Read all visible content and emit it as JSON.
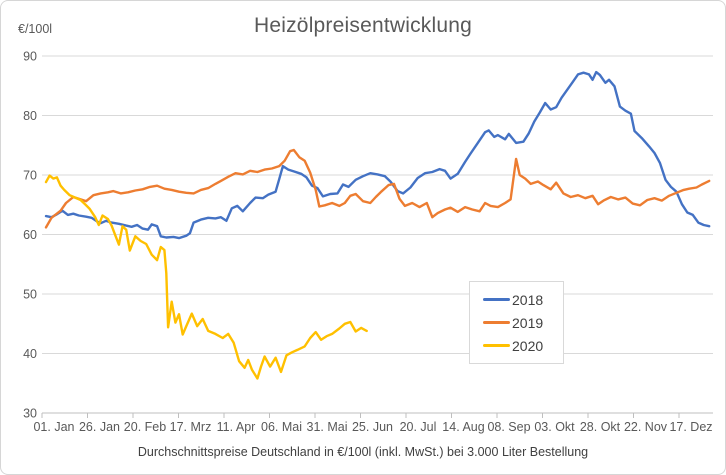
{
  "chart": {
    "title": "Heizölpreisentwicklung",
    "unit_label": "€/100l",
    "subtitle": "Durchschnittspreise Deutschland in €/100l (inkl. MwSt.) bei 3.000 Liter Bestellung"
  },
  "chart_data": {
    "type": "line",
    "title": "Heizölpreisentwicklung",
    "subtitle": "Durchschnittspreise Deutschland in €/100l (inkl. MwSt.) bei 3.000 Liter Bestellung",
    "ylabel": "€/100l",
    "ylim": [
      30,
      90
    ],
    "yticks": [
      90,
      80,
      70,
      60,
      50,
      40,
      30
    ],
    "grid": true,
    "legend_position": "center-right box",
    "x_unit": "day of year",
    "xticks": {
      "days": [
        0,
        25,
        50,
        75,
        100,
        125,
        150,
        175,
        200,
        225,
        250,
        275,
        300,
        325,
        350
      ],
      "labels": [
        "01. Jan",
        "26. Jan",
        "20. Feb",
        "17. Mrz",
        "11. Apr",
        "06. Mai",
        "31. Mai",
        "25. Jun",
        "20. Jul",
        "14. Aug",
        "08. Sep",
        "03. Okt",
        "28. Okt",
        "22. Nov",
        "17. Dez"
      ]
    },
    "series": [
      {
        "name": "2018",
        "color": "#4472C4",
        "points": [
          [
            0,
            63.1
          ],
          [
            3,
            62.9
          ],
          [
            6,
            63.4
          ],
          [
            9,
            64.0
          ],
          [
            12,
            63.3
          ],
          [
            15,
            63.5
          ],
          [
            18,
            63.2
          ],
          [
            22,
            63.0
          ],
          [
            25,
            62.8
          ],
          [
            28,
            62.2
          ],
          [
            30,
            61.9
          ],
          [
            33,
            62.3
          ],
          [
            36,
            62.0
          ],
          [
            40,
            61.8
          ],
          [
            44,
            61.5
          ],
          [
            47,
            61.3
          ],
          [
            50,
            61.6
          ],
          [
            53,
            61.0
          ],
          [
            56,
            60.8
          ],
          [
            58,
            61.7
          ],
          [
            61,
            61.4
          ],
          [
            63,
            59.7
          ],
          [
            66,
            59.5
          ],
          [
            70,
            59.6
          ],
          [
            73,
            59.4
          ],
          [
            77,
            59.8
          ],
          [
            79,
            60.2
          ],
          [
            81,
            62.0
          ],
          [
            85,
            62.5
          ],
          [
            89,
            62.8
          ],
          [
            93,
            62.7
          ],
          [
            96,
            62.9
          ],
          [
            99,
            62.3
          ],
          [
            102,
            64.4
          ],
          [
            105,
            64.8
          ],
          [
            108,
            63.9
          ],
          [
            112,
            65.3
          ],
          [
            115,
            66.2
          ],
          [
            119,
            66.1
          ],
          [
            122,
            66.7
          ],
          [
            126,
            67.2
          ],
          [
            128,
            69.3
          ],
          [
            130,
            71.5
          ],
          [
            133,
            70.9
          ],
          [
            136,
            70.6
          ],
          [
            140,
            70.2
          ],
          [
            143,
            69.6
          ],
          [
            146,
            68.2
          ],
          [
            149,
            67.8
          ],
          [
            152,
            66.4
          ],
          [
            156,
            66.8
          ],
          [
            160,
            66.9
          ],
          [
            163,
            68.4
          ],
          [
            166,
            68.0
          ],
          [
            170,
            69.2
          ],
          [
            174,
            69.8
          ],
          [
            178,
            70.3
          ],
          [
            182,
            70.1
          ],
          [
            186,
            69.8
          ],
          [
            189,
            68.9
          ],
          [
            193,
            67.3
          ],
          [
            196,
            66.9
          ],
          [
            200,
            67.9
          ],
          [
            204,
            69.5
          ],
          [
            208,
            70.3
          ],
          [
            212,
            70.5
          ],
          [
            216,
            71.0
          ],
          [
            219,
            70.7
          ],
          [
            222,
            69.4
          ],
          [
            226,
            70.2
          ],
          [
            230,
            72.2
          ],
          [
            233,
            73.6
          ],
          [
            237,
            75.4
          ],
          [
            241,
            77.2
          ],
          [
            243,
            77.5
          ],
          [
            246,
            76.4
          ],
          [
            248,
            76.7
          ],
          [
            252,
            76.0
          ],
          [
            254,
            76.9
          ],
          [
            258,
            75.4
          ],
          [
            262,
            75.6
          ],
          [
            265,
            77.0
          ],
          [
            268,
            79.0
          ],
          [
            271,
            80.5
          ],
          [
            274,
            82.1
          ],
          [
            277,
            81.0
          ],
          [
            280,
            81.4
          ],
          [
            283,
            83.0
          ],
          [
            286,
            84.3
          ],
          [
            289,
            85.6
          ],
          [
            292,
            86.9
          ],
          [
            295,
            87.2
          ],
          [
            298,
            86.9
          ],
          [
            300,
            86.0
          ],
          [
            302,
            87.3
          ],
          [
            304,
            86.8
          ],
          [
            307,
            85.5
          ],
          [
            309,
            86.0
          ],
          [
            312,
            84.9
          ],
          [
            315,
            81.5
          ],
          [
            318,
            80.8
          ],
          [
            321,
            80.3
          ],
          [
            323,
            77.4
          ],
          [
            327,
            76.2
          ],
          [
            331,
            74.8
          ],
          [
            334,
            73.7
          ],
          [
            337,
            72.0
          ],
          [
            340,
            69.2
          ],
          [
            343,
            68.0
          ],
          [
            346,
            67.2
          ],
          [
            349,
            65.1
          ],
          [
            352,
            63.7
          ],
          [
            355,
            63.3
          ],
          [
            358,
            62.0
          ],
          [
            361,
            61.6
          ],
          [
            364,
            61.4
          ]
        ]
      },
      {
        "name": "2019",
        "color": "#ED7D31",
        "points": [
          [
            0,
            61.2
          ],
          [
            3,
            62.8
          ],
          [
            8,
            64.0
          ],
          [
            11,
            65.3
          ],
          [
            15,
            66.3
          ],
          [
            18,
            66.0
          ],
          [
            22,
            65.6
          ],
          [
            26,
            66.6
          ],
          [
            30,
            66.9
          ],
          [
            34,
            67.1
          ],
          [
            37,
            67.3
          ],
          [
            41,
            66.9
          ],
          [
            45,
            67.1
          ],
          [
            49,
            67.4
          ],
          [
            53,
            67.6
          ],
          [
            57,
            68.0
          ],
          [
            61,
            68.2
          ],
          [
            65,
            67.7
          ],
          [
            69,
            67.5
          ],
          [
            73,
            67.2
          ],
          [
            77,
            67.0
          ],
          [
            81,
            66.9
          ],
          [
            85,
            67.5
          ],
          [
            89,
            67.8
          ],
          [
            93,
            68.5
          ],
          [
            96,
            69.0
          ],
          [
            100,
            69.7
          ],
          [
            104,
            70.3
          ],
          [
            108,
            70.1
          ],
          [
            112,
            70.7
          ],
          [
            116,
            70.5
          ],
          [
            120,
            70.9
          ],
          [
            124,
            71.1
          ],
          [
            128,
            71.5
          ],
          [
            131,
            72.4
          ],
          [
            134,
            74.0
          ],
          [
            136,
            74.2
          ],
          [
            139,
            73.0
          ],
          [
            142,
            72.4
          ],
          [
            145,
            70.4
          ],
          [
            148,
            67.5
          ],
          [
            150,
            64.7
          ],
          [
            153,
            64.9
          ],
          [
            157,
            65.3
          ],
          [
            161,
            64.8
          ],
          [
            164,
            65.3
          ],
          [
            167,
            66.5
          ],
          [
            170,
            66.8
          ],
          [
            174,
            65.6
          ],
          [
            178,
            65.3
          ],
          [
            181,
            66.3
          ],
          [
            184,
            67.2
          ],
          [
            188,
            68.3
          ],
          [
            191,
            68.5
          ],
          [
            194,
            66.0
          ],
          [
            197,
            64.8
          ],
          [
            201,
            65.3
          ],
          [
            205,
            64.6
          ],
          [
            209,
            65.3
          ],
          [
            212,
            62.9
          ],
          [
            215,
            63.6
          ],
          [
            219,
            64.2
          ],
          [
            222,
            64.5
          ],
          [
            226,
            63.8
          ],
          [
            230,
            64.6
          ],
          [
            234,
            64.2
          ],
          [
            238,
            63.9
          ],
          [
            241,
            65.3
          ],
          [
            244,
            64.8
          ],
          [
            248,
            64.6
          ],
          [
            252,
            65.3
          ],
          [
            255,
            65.9
          ],
          [
            258,
            72.7
          ],
          [
            260,
            70.0
          ],
          [
            263,
            69.4
          ],
          [
            266,
            68.5
          ],
          [
            270,
            68.9
          ],
          [
            273,
            68.3
          ],
          [
            277,
            67.6
          ],
          [
            280,
            68.7
          ],
          [
            284,
            66.9
          ],
          [
            288,
            66.3
          ],
          [
            292,
            66.6
          ],
          [
            296,
            66.1
          ],
          [
            300,
            66.5
          ],
          [
            303,
            65.1
          ],
          [
            306,
            65.7
          ],
          [
            310,
            66.3
          ],
          [
            314,
            65.9
          ],
          [
            318,
            66.2
          ],
          [
            322,
            65.2
          ],
          [
            326,
            64.9
          ],
          [
            330,
            65.8
          ],
          [
            334,
            66.1
          ],
          [
            338,
            65.7
          ],
          [
            342,
            66.5
          ],
          [
            346,
            67.0
          ],
          [
            350,
            67.5
          ],
          [
            353,
            67.7
          ],
          [
            357,
            67.9
          ],
          [
            360,
            68.4
          ],
          [
            362,
            68.7
          ],
          [
            364,
            69.0
          ]
        ]
      },
      {
        "name": "2020",
        "color": "#FFC000",
        "points": [
          [
            0,
            68.8
          ],
          [
            2,
            69.9
          ],
          [
            4,
            69.4
          ],
          [
            6,
            69.6
          ],
          [
            8,
            68.2
          ],
          [
            10,
            67.5
          ],
          [
            13,
            66.6
          ],
          [
            16,
            66.2
          ],
          [
            19,
            65.8
          ],
          [
            22,
            64.9
          ],
          [
            24,
            64.3
          ],
          [
            27,
            62.9
          ],
          [
            29,
            61.6
          ],
          [
            31,
            63.2
          ],
          [
            34,
            62.6
          ],
          [
            36,
            61.5
          ],
          [
            38,
            59.9
          ],
          [
            40,
            58.3
          ],
          [
            42,
            61.4
          ],
          [
            44,
            60.8
          ],
          [
            46,
            57.3
          ],
          [
            49,
            59.7
          ],
          [
            52,
            58.9
          ],
          [
            55,
            58.4
          ],
          [
            58,
            56.6
          ],
          [
            61,
            55.7
          ],
          [
            63,
            57.9
          ],
          [
            65,
            57.4
          ],
          [
            66,
            53.5
          ],
          [
            67,
            44.4
          ],
          [
            69,
            48.7
          ],
          [
            71,
            45.2
          ],
          [
            73,
            46.6
          ],
          [
            75,
            43.2
          ],
          [
            77,
            44.6
          ],
          [
            80,
            46.7
          ],
          [
            83,
            44.6
          ],
          [
            86,
            45.8
          ],
          [
            89,
            43.8
          ],
          [
            93,
            43.3
          ],
          [
            97,
            42.6
          ],
          [
            100,
            43.3
          ],
          [
            103,
            41.8
          ],
          [
            106,
            38.7
          ],
          [
            109,
            37.6
          ],
          [
            111,
            38.9
          ],
          [
            113,
            37.3
          ],
          [
            116,
            35.8
          ],
          [
            118,
            37.8
          ],
          [
            120,
            39.5
          ],
          [
            123,
            37.8
          ],
          [
            126,
            39.3
          ],
          [
            129,
            36.9
          ],
          [
            132,
            39.7
          ],
          [
            135,
            40.2
          ],
          [
            138,
            40.6
          ],
          [
            142,
            41.2
          ],
          [
            145,
            42.6
          ],
          [
            148,
            43.6
          ],
          [
            151,
            42.3
          ],
          [
            154,
            42.9
          ],
          [
            157,
            43.3
          ],
          [
            161,
            44.2
          ],
          [
            164,
            45.0
          ],
          [
            167,
            45.3
          ],
          [
            170,
            43.7
          ],
          [
            173,
            44.3
          ],
          [
            176,
            43.8
          ]
        ]
      }
    ],
    "style": {
      "grid_color": "#D9D9D9",
      "axis_color": "#BFBFBF",
      "tick_text_color": "#595959",
      "title_color": "#595959",
      "subtitle_color": "#404040"
    }
  }
}
